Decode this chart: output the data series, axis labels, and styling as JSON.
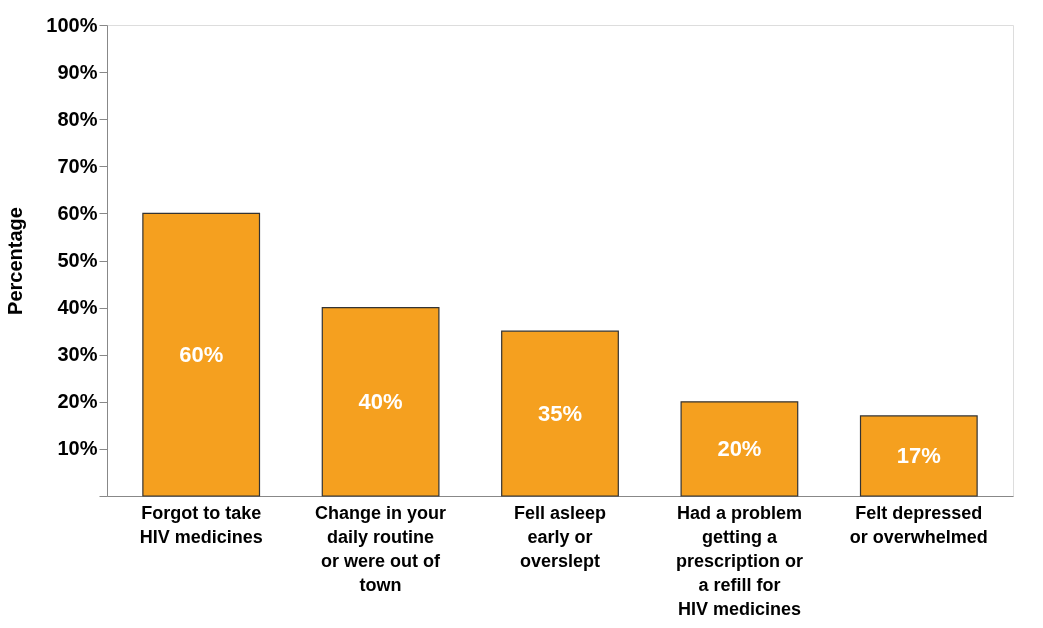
{
  "chart_data": {
    "type": "bar",
    "ylabel": "Percentage",
    "categories": [
      "Forgot to take HIV medicines",
      "Change in your daily routine or were out of town",
      "Fell asleep early or overslept",
      "Had a problem getting a prescription or a refill for HIV medicines",
      "Felt depressed or overwhelmed"
    ],
    "values": [
      60,
      40,
      35,
      20,
      17
    ],
    "value_labels": [
      "60%",
      "40%",
      "35%",
      "20%",
      "17%"
    ],
    "color": "#f5a01f",
    "ylim": [
      0,
      100
    ],
    "yticks": [
      {
        "value": 0,
        "label": null
      },
      {
        "value": 10,
        "label": "10%"
      },
      {
        "value": 20,
        "label": "20%"
      },
      {
        "value": 30,
        "label": "30%"
      },
      {
        "value": 40,
        "label": "40%"
      },
      {
        "value": 50,
        "label": "50%"
      },
      {
        "value": 60,
        "label": "60%"
      },
      {
        "value": 70,
        "label": "70%"
      },
      {
        "value": 80,
        "label": "80%"
      },
      {
        "value": 90,
        "label": "90%"
      },
      {
        "value": 100,
        "label": "100%"
      }
    ],
    "grid": false
  }
}
